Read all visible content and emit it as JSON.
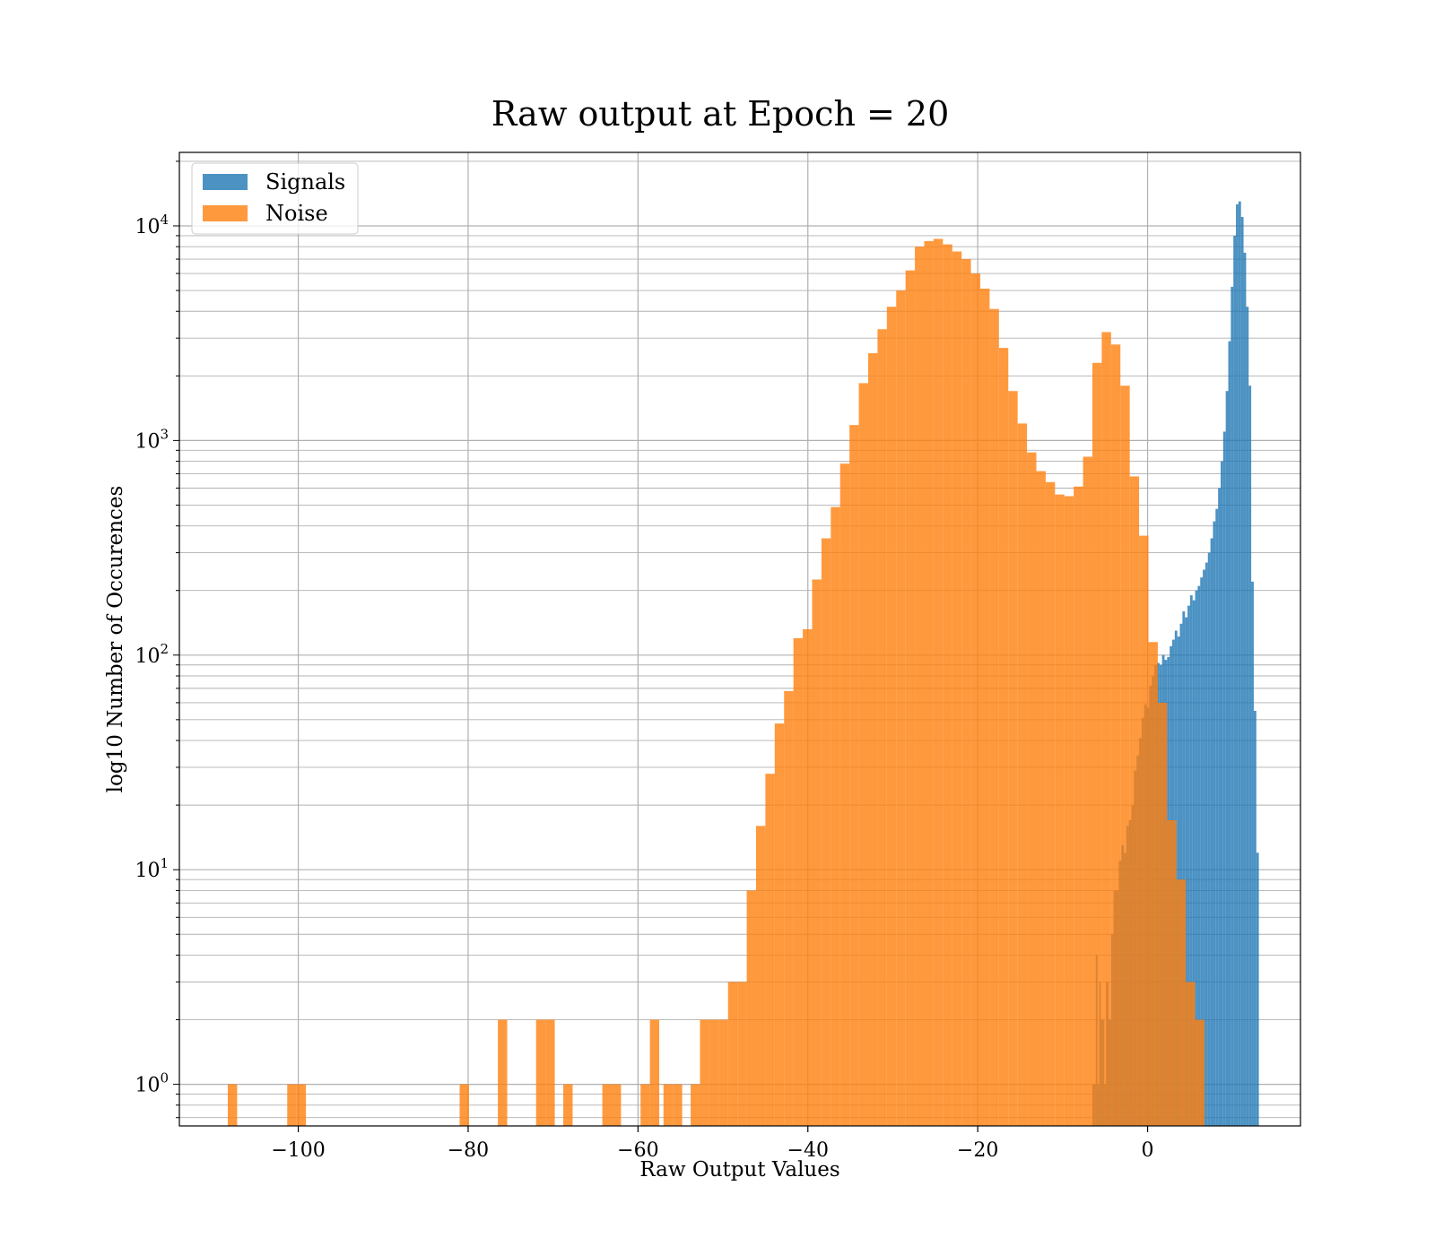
{
  "chart_data": {
    "type": "bar",
    "title": "Raw output at Epoch = 20",
    "xlabel": "Raw Output Values",
    "ylabel": "log10 Number of Occurences",
    "xlim": [
      -114,
      18
    ],
    "ylim": [
      0.64,
      22000
    ],
    "yscale": "log",
    "grid": true,
    "legend_position": "top-left",
    "x_ticks": [
      {
        "value": -100,
        "label": "−100"
      },
      {
        "value": -80,
        "label": "−80"
      },
      {
        "value": -60,
        "label": "−60"
      },
      {
        "value": -40,
        "label": "−40"
      },
      {
        "value": -20,
        "label": "−20"
      },
      {
        "value": 0,
        "label": "0"
      }
    ],
    "y_ticks": [
      {
        "value": 1,
        "base": "10",
        "exp": "0"
      },
      {
        "value": 10,
        "base": "10",
        "exp": "1"
      },
      {
        "value": 100,
        "base": "10",
        "exp": "2"
      },
      {
        "value": 1000,
        "base": "10",
        "exp": "3"
      },
      {
        "value": 10000,
        "base": "10",
        "exp": "4"
      }
    ],
    "series": [
      {
        "name": "Signals",
        "color": "#1f77b4",
        "opacity": 0.8,
        "bins": [
          [
            -6.5,
            -6.3,
            1
          ],
          [
            -6.3,
            -6.1,
            1
          ],
          [
            -6.1,
            -5.9,
            4
          ],
          [
            -5.9,
            -5.7,
            1
          ],
          [
            -5.7,
            -5.5,
            3
          ],
          [
            -5.5,
            -5.3,
            2
          ],
          [
            -5.3,
            -5.1,
            2
          ],
          [
            -5.1,
            -4.9,
            1
          ],
          [
            -4.9,
            -4.6,
            3
          ],
          [
            -4.6,
            -4.3,
            2
          ],
          [
            -4.3,
            -4.0,
            5
          ],
          [
            -4.0,
            -3.7,
            8
          ],
          [
            -3.7,
            -3.4,
            8
          ],
          [
            -3.4,
            -3.1,
            11
          ],
          [
            -3.1,
            -2.8,
            13
          ],
          [
            -2.8,
            -2.5,
            12
          ],
          [
            -2.5,
            -2.2,
            16
          ],
          [
            -2.2,
            -1.9,
            17
          ],
          [
            -1.9,
            -1.6,
            20
          ],
          [
            -1.6,
            -1.3,
            29
          ],
          [
            -1.3,
            -1.0,
            34
          ],
          [
            -1.0,
            -0.7,
            41
          ],
          [
            -0.7,
            -0.4,
            51
          ],
          [
            -0.4,
            -0.1,
            59
          ],
          [
            -0.1,
            0.2,
            57
          ],
          [
            0.2,
            0.5,
            72
          ],
          [
            0.5,
            0.8,
            80
          ],
          [
            0.8,
            1.1,
            90
          ],
          [
            1.1,
            1.4,
            92
          ],
          [
            1.4,
            1.7,
            90
          ],
          [
            1.7,
            2.0,
            100
          ],
          [
            2.0,
            2.3,
            95
          ],
          [
            2.3,
            2.6,
            98
          ],
          [
            2.6,
            2.9,
            110
          ],
          [
            2.9,
            3.2,
            118
          ],
          [
            3.2,
            3.5,
            130
          ],
          [
            3.5,
            3.8,
            122
          ],
          [
            3.8,
            4.1,
            140
          ],
          [
            4.1,
            4.4,
            160
          ],
          [
            4.4,
            4.7,
            150
          ],
          [
            4.7,
            5.0,
            170
          ],
          [
            5.0,
            5.3,
            190
          ],
          [
            5.3,
            5.6,
            180
          ],
          [
            5.6,
            5.9,
            200
          ],
          [
            5.9,
            6.2,
            210
          ],
          [
            6.2,
            6.5,
            230
          ],
          [
            6.5,
            6.8,
            250
          ],
          [
            6.8,
            7.1,
            270
          ],
          [
            7.1,
            7.4,
            300
          ],
          [
            7.4,
            7.7,
            350
          ],
          [
            7.7,
            8.0,
            420
          ],
          [
            8.0,
            8.3,
            480
          ],
          [
            8.3,
            8.6,
            600
          ],
          [
            8.6,
            8.9,
            800
          ],
          [
            8.9,
            9.2,
            1100
          ],
          [
            9.2,
            9.5,
            1700
          ],
          [
            9.5,
            9.8,
            2900
          ],
          [
            9.8,
            10.1,
            5200
          ],
          [
            10.1,
            10.4,
            9000
          ],
          [
            10.4,
            10.7,
            12600
          ],
          [
            10.7,
            11.0,
            13000
          ],
          [
            11.0,
            11.3,
            11000
          ],
          [
            11.3,
            11.6,
            7500
          ],
          [
            11.6,
            11.9,
            4200
          ],
          [
            11.9,
            12.2,
            1800
          ],
          [
            12.2,
            12.5,
            220
          ],
          [
            12.5,
            12.8,
            55
          ],
          [
            12.8,
            13.1,
            12
          ]
        ]
      },
      {
        "name": "Noise",
        "color": "#ff7f0e",
        "opacity": 0.8,
        "bins": [
          [
            -108.3,
            -107.2,
            1
          ],
          [
            -101.3,
            -100.2,
            1
          ],
          [
            -100.2,
            -99.1,
            1
          ],
          [
            -81.0,
            -79.9,
            1
          ],
          [
            -76.5,
            -75.4,
            2
          ],
          [
            -72.0,
            -70.9,
            2
          ],
          [
            -70.9,
            -69.8,
            2
          ],
          [
            -68.8,
            -67.7,
            1
          ],
          [
            -64.2,
            -63.1,
            1
          ],
          [
            -63.1,
            -62.0,
            1
          ],
          [
            -59.7,
            -58.6,
            1
          ],
          [
            -58.6,
            -57.5,
            2
          ],
          [
            -57.0,
            -55.9,
            1
          ],
          [
            -55.9,
            -54.8,
            1
          ],
          [
            -53.8,
            -52.7,
            1
          ],
          [
            -52.7,
            -51.6,
            2
          ],
          [
            -51.6,
            -50.5,
            2
          ],
          [
            -50.5,
            -49.4,
            2
          ],
          [
            -49.4,
            -48.3,
            3
          ],
          [
            -48.3,
            -47.2,
            3
          ],
          [
            -47.2,
            -46.1,
            8
          ],
          [
            -46.1,
            -45.0,
            16
          ],
          [
            -45.0,
            -43.9,
            28
          ],
          [
            -43.9,
            -42.8,
            48
          ],
          [
            -42.8,
            -41.7,
            68
          ],
          [
            -41.7,
            -40.6,
            120
          ],
          [
            -40.6,
            -39.5,
            132
          ],
          [
            -39.5,
            -38.4,
            225
          ],
          [
            -38.4,
            -37.3,
            350
          ],
          [
            -37.3,
            -36.2,
            490
          ],
          [
            -36.2,
            -35.1,
            780
          ],
          [
            -35.1,
            -34.0,
            1180
          ],
          [
            -34.0,
            -32.9,
            1850
          ],
          [
            -32.9,
            -31.8,
            2550
          ],
          [
            -31.8,
            -30.7,
            3300
          ],
          [
            -30.7,
            -29.6,
            4200
          ],
          [
            -29.6,
            -28.5,
            5000
          ],
          [
            -28.5,
            -27.4,
            6200
          ],
          [
            -27.4,
            -26.3,
            8000
          ],
          [
            -26.3,
            -25.2,
            8500
          ],
          [
            -25.2,
            -24.1,
            8700
          ],
          [
            -24.1,
            -23.0,
            8200
          ],
          [
            -23.0,
            -21.9,
            7600
          ],
          [
            -21.9,
            -20.8,
            7000
          ],
          [
            -20.8,
            -19.7,
            6000
          ],
          [
            -19.7,
            -18.6,
            5100
          ],
          [
            -18.6,
            -17.5,
            4100
          ],
          [
            -17.5,
            -16.4,
            2700
          ],
          [
            -16.4,
            -15.3,
            1700
          ],
          [
            -15.3,
            -14.2,
            1200
          ],
          [
            -14.2,
            -13.1,
            880
          ],
          [
            -13.1,
            -12.0,
            720
          ],
          [
            -12.0,
            -10.9,
            640
          ],
          [
            -10.9,
            -9.8,
            560
          ],
          [
            -9.8,
            -8.7,
            550
          ],
          [
            -8.7,
            -7.6,
            610
          ],
          [
            -7.6,
            -6.5,
            840
          ],
          [
            -6.5,
            -5.4,
            2300
          ],
          [
            -5.4,
            -4.3,
            3200
          ],
          [
            -4.3,
            -3.2,
            2800
          ],
          [
            -3.2,
            -2.1,
            1800
          ],
          [
            -2.1,
            -1.0,
            680
          ],
          [
            -1.0,
            0.1,
            360
          ],
          [
            0.1,
            1.2,
            115
          ],
          [
            1.2,
            2.3,
            60
          ],
          [
            2.3,
            3.4,
            17
          ],
          [
            3.4,
            4.5,
            9
          ],
          [
            4.5,
            5.6,
            3
          ],
          [
            5.6,
            6.7,
            2
          ]
        ]
      }
    ]
  }
}
